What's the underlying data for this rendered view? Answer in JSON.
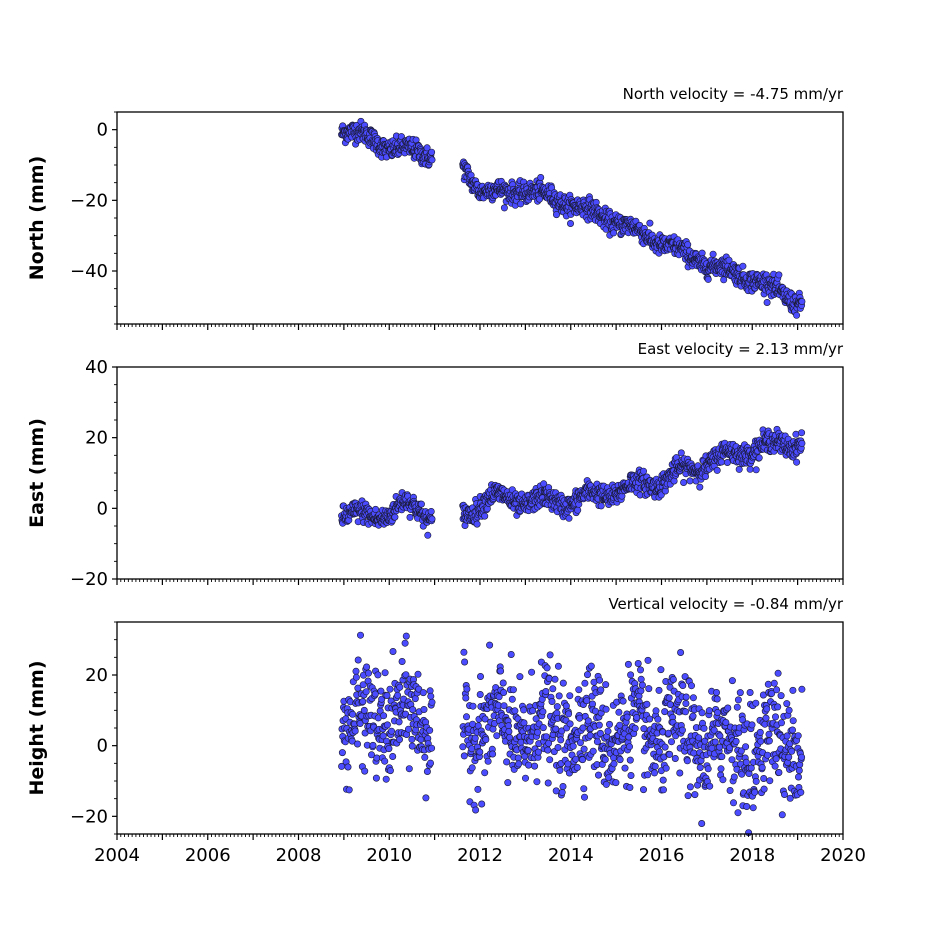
{
  "chart_data": [
    {
      "type": "scatter",
      "title": "North velocity = -4.75 mm/yr",
      "xlabel": "",
      "ylabel": "North (mm)",
      "xlim": [
        2004,
        2020
      ],
      "ylim": [
        -55,
        5
      ],
      "yticks": [
        0,
        -20,
        -40
      ],
      "ytick_labels": [
        "0",
        "−20",
        "−40"
      ],
      "x_tick_labels_shown": false,
      "marker_color": "#4b4bff",
      "trend": [
        {
          "x": 2009.0,
          "y": 0
        },
        {
          "x": 2009.5,
          "y": -2
        },
        {
          "x": 2010.0,
          "y": -5
        },
        {
          "x": 2010.9,
          "y": -7
        },
        {
          "x": 2011.6,
          "y": -10
        },
        {
          "x": 2012.0,
          "y": -17
        },
        {
          "x": 2012.5,
          "y": -18
        },
        {
          "x": 2013.0,
          "y": -17
        },
        {
          "x": 2014.0,
          "y": -21
        },
        {
          "x": 2015.0,
          "y": -26
        },
        {
          "x": 2016.0,
          "y": -32
        },
        {
          "x": 2017.0,
          "y": -38
        },
        {
          "x": 2018.0,
          "y": -42
        },
        {
          "x": 2019.05,
          "y": -49
        }
      ],
      "scatter_spread": 1.4,
      "seasonal_amplitude": 1.0
    },
    {
      "type": "scatter",
      "title": "East velocity = 2.13 mm/yr",
      "xlabel": "",
      "ylabel": "East (mm)",
      "xlim": [
        2004,
        2020
      ],
      "ylim": [
        -20,
        40
      ],
      "yticks": [
        40,
        20,
        0,
        -20
      ],
      "ytick_labels": [
        "40",
        "20",
        "0",
        "−20"
      ],
      "x_tick_labels_shown": false,
      "marker_color": "#4b4bff",
      "trend": [
        {
          "x": 2009.0,
          "y": -1
        },
        {
          "x": 2009.6,
          "y": -3
        },
        {
          "x": 2010.3,
          "y": 1
        },
        {
          "x": 2010.9,
          "y": -2
        },
        {
          "x": 2011.6,
          "y": -2
        },
        {
          "x": 2012.2,
          "y": 3
        },
        {
          "x": 2013.0,
          "y": 2
        },
        {
          "x": 2014.0,
          "y": 2
        },
        {
          "x": 2015.0,
          "y": 5
        },
        {
          "x": 2016.0,
          "y": 8
        },
        {
          "x": 2017.0,
          "y": 13
        },
        {
          "x": 2018.0,
          "y": 17
        },
        {
          "x": 2019.05,
          "y": 19
        }
      ],
      "scatter_spread": 1.5,
      "seasonal_amplitude": 1.6
    },
    {
      "type": "scatter",
      "title": "Vertical velocity = -0.84 mm/yr",
      "xlabel": "",
      "ylabel": "Height (mm)",
      "xlim": [
        2004,
        2020
      ],
      "ylim": [
        -25,
        35
      ],
      "yticks": [
        20,
        0,
        -20
      ],
      "ytick_labels": [
        "20",
        "0",
        "−20"
      ],
      "xticks": [
        2004,
        2006,
        2008,
        2010,
        2012,
        2014,
        2016,
        2018,
        2020
      ],
      "xtick_labels": [
        "2004",
        "2006",
        "2008",
        "2010",
        "2012",
        "2014",
        "2016",
        "2018",
        "2020"
      ],
      "x_tick_labels_shown": true,
      "marker_color": "#4b4bff",
      "trend": [
        {
          "x": 2009.0,
          "y": 6
        },
        {
          "x": 2010.0,
          "y": 8
        },
        {
          "x": 2010.9,
          "y": 7
        },
        {
          "x": 2011.6,
          "y": 6
        },
        {
          "x": 2013.0,
          "y": 4
        },
        {
          "x": 2014.0,
          "y": 5
        },
        {
          "x": 2015.0,
          "y": 4
        },
        {
          "x": 2016.0,
          "y": 4
        },
        {
          "x": 2017.0,
          "y": 1
        },
        {
          "x": 2018.0,
          "y": 0
        },
        {
          "x": 2019.05,
          "y": 1
        }
      ],
      "scatter_spread": 7.5,
      "seasonal_amplitude": 4.0
    }
  ],
  "data_segments": [
    {
      "start": 2008.95,
      "end": 2010.95
    },
    {
      "start": 2011.62,
      "end": 2019.1
    }
  ]
}
